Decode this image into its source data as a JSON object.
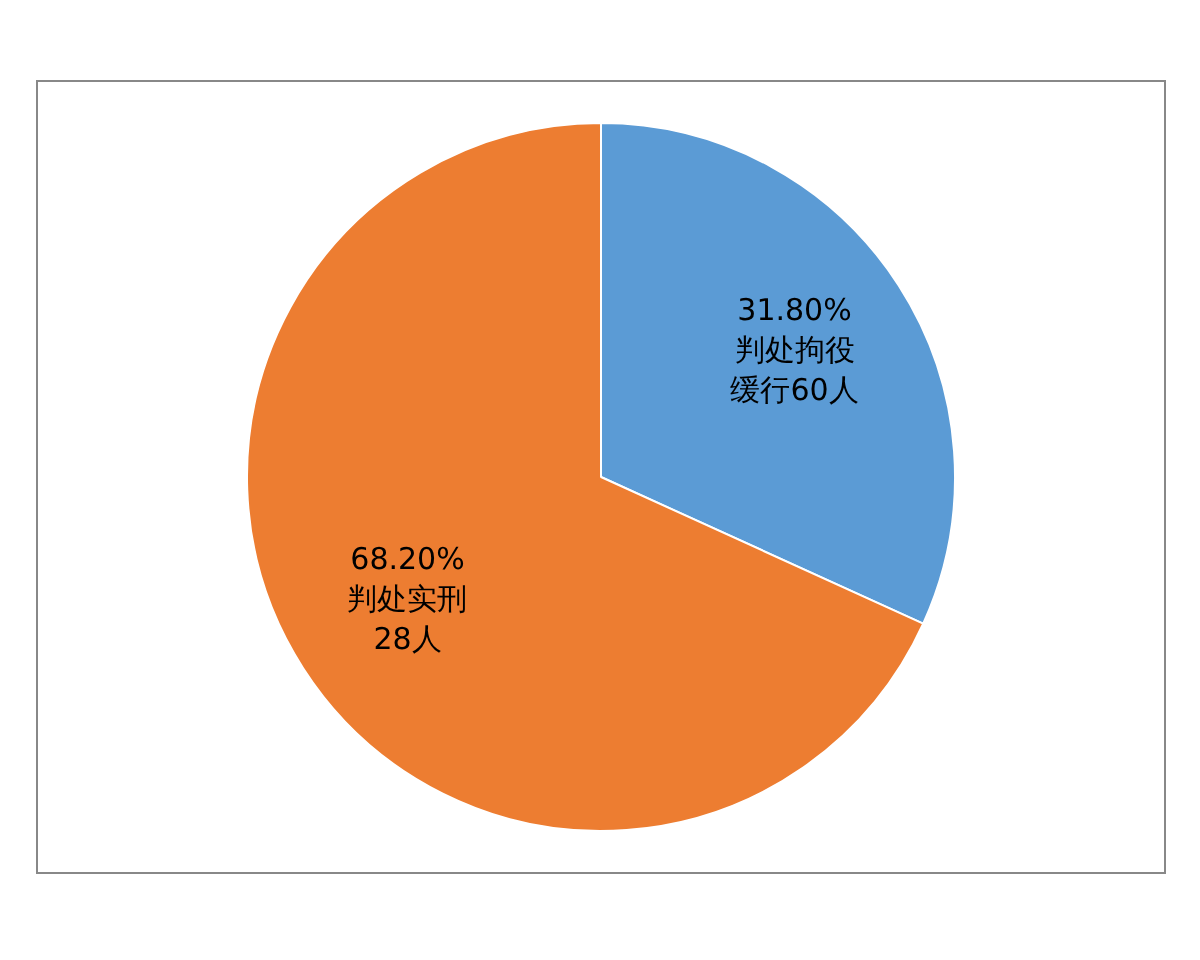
{
  "chart_data": {
    "type": "pie",
    "categories": [
      "判处拘役缓行60人",
      "判处实刑28人"
    ],
    "values": [
      31.8,
      68.2
    ],
    "colors": [
      "#5b9bd5",
      "#ed7d31"
    ],
    "value_labels": [
      "31.80%",
      "68.20%"
    ]
  }
}
